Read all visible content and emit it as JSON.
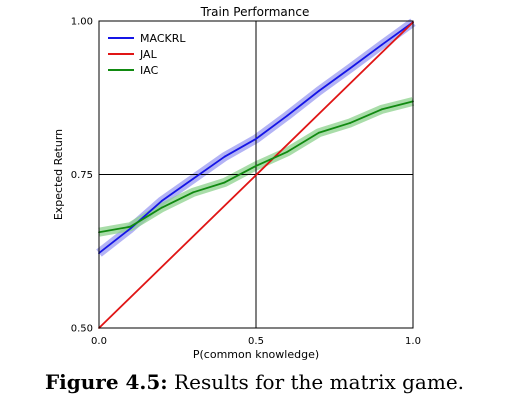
{
  "chart_data": {
    "type": "line",
    "title": "Train Performance",
    "xlabel": "P(common knowledge)",
    "ylabel": "Expected Return",
    "xlim": [
      0.0,
      1.0
    ],
    "ylim": [
      0.5,
      1.0
    ],
    "xticks": [
      "0.0",
      "0.5",
      "1.0"
    ],
    "yticks": [
      "0.50",
      "0.75",
      "1.00"
    ],
    "reference_lines": {
      "x": 0.5,
      "y": 0.75
    },
    "legend_position": "top-left",
    "series": [
      {
        "name": "MACKRL",
        "color": "#1515e6",
        "band_color": "#9a9af2",
        "x": [
          0.0,
          0.1,
          0.2,
          0.3,
          0.4,
          0.5,
          0.6,
          0.7,
          0.8,
          0.9,
          1.0
        ],
        "y": [
          0.622,
          0.662,
          0.707,
          0.743,
          0.779,
          0.808,
          0.846,
          0.886,
          0.923,
          0.961,
          0.998
        ]
      },
      {
        "name": "JAL",
        "color": "#e01515",
        "x": [
          0.0,
          1.0
        ],
        "y": [
          0.5,
          0.998
        ]
      },
      {
        "name": "IAC",
        "color": "#118a11",
        "band_color": "#8cd28c",
        "x": [
          0.0,
          0.1,
          0.2,
          0.3,
          0.4,
          0.5,
          0.6,
          0.7,
          0.8,
          0.9,
          1.0
        ],
        "y": [
          0.656,
          0.665,
          0.696,
          0.721,
          0.737,
          0.764,
          0.787,
          0.818,
          0.834,
          0.856,
          0.869
        ]
      }
    ]
  },
  "caption": {
    "label": "Figure 4.5:",
    "text": "Results for the matrix game."
  }
}
